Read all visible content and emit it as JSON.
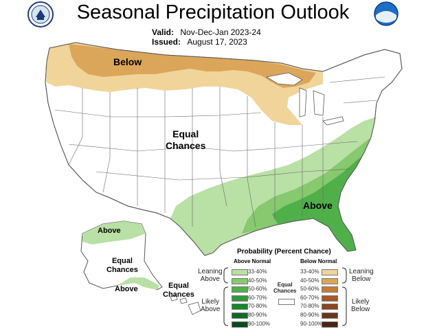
{
  "header": {
    "title": "Seasonal Precipitation Outlook",
    "valid_label": "Valid:",
    "valid_value": "Nov-Dec-Jan 2023-24",
    "issued_label": "Issued:",
    "issued_value": "August 17, 2023"
  },
  "map_labels": {
    "below": "Below",
    "equal_line1": "Equal",
    "equal_line2": "Chances",
    "above": "Above",
    "ak_above": "Above",
    "ak_equal_line1": "Equal",
    "ak_equal_line2": "Chances",
    "ak_above2": "Above",
    "hi_equal_line1": "Equal",
    "hi_equal_line2": "Chances"
  },
  "legend": {
    "title": "Probability (Percent Chance)",
    "above_header": "Above Normal",
    "below_header": "Below Normal",
    "equal_line1": "Equal",
    "equal_line2": "Chances",
    "leaning_above_1": "Leaning",
    "leaning_above_2": "Above",
    "likely_above_1": "Likely",
    "likely_above_2": "Above",
    "leaning_below_1": "Leaning",
    "leaning_below_2": "Below",
    "likely_below_1": "Likely",
    "likely_below_2": "Below",
    "above": [
      {
        "range": "33-40%",
        "color": "#b9e0a5"
      },
      {
        "range": "40-50%",
        "color": "#86c96e"
      },
      {
        "range": "50-60%",
        "color": "#4fb04a"
      },
      {
        "range": "60-70%",
        "color": "#2f9a3c"
      },
      {
        "range": "70-80%",
        "color": "#16862f"
      },
      {
        "range": "80-90%",
        "color": "#0f6a27"
      },
      {
        "range": "90-100%",
        "color": "#0a4a1c"
      }
    ],
    "below": [
      {
        "range": "33-40%",
        "color": "#f1d49a"
      },
      {
        "range": "40-50%",
        "color": "#dba65a"
      },
      {
        "range": "50-60%",
        "color": "#c47e35"
      },
      {
        "range": "60-70%",
        "color": "#a85a25"
      },
      {
        "range": "70-80%",
        "color": "#8d4520"
      },
      {
        "range": "80-90%",
        "color": "#6b3518"
      },
      {
        "range": "90-100%",
        "color": "#4a2412"
      }
    ]
  },
  "colors": {
    "below_light": "#f1d49a",
    "below_mid": "#dba65a",
    "above_light": "#b9e0a5",
    "above_mid": "#86c96e",
    "above_dark": "#4fb04a",
    "border": "#555555"
  }
}
